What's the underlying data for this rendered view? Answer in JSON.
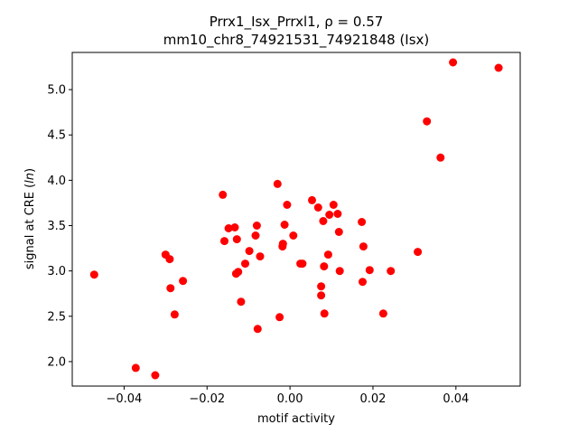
{
  "chart_data": {
    "type": "scatter",
    "title_line1": "Prrx1_Isx_Prrxl1, ρ = 0.57",
    "title_line2": "mm10_chr8_74921531_74921848 (Isx)",
    "xlabel": "motif activity",
    "ylabel_prefix": "signal at CRE (",
    "ylabel_italic": "ln",
    "ylabel_suffix": ")",
    "xlim": [
      -0.0525,
      0.0555
    ],
    "ylim": [
      1.73,
      5.41
    ],
    "xticks": [
      -0.04,
      -0.02,
      0.0,
      0.02,
      0.04
    ],
    "xtick_labels": [
      "−0.04",
      "−0.02",
      "0.00",
      "0.02",
      "0.04"
    ],
    "yticks": [
      2.0,
      2.5,
      3.0,
      3.5,
      4.0,
      4.5,
      5.0
    ],
    "ytick_labels": [
      "2.0",
      "2.5",
      "3.0",
      "3.5",
      "4.0",
      "4.5",
      "5.0"
    ],
    "grid": false,
    "point_color": "#ff0000",
    "points": [
      [
        -0.0472,
        2.96
      ],
      [
        -0.0372,
        1.93
      ],
      [
        -0.0325,
        1.85
      ],
      [
        -0.03,
        3.18
      ],
      [
        -0.029,
        3.13
      ],
      [
        -0.0288,
        2.81
      ],
      [
        -0.0278,
        2.52
      ],
      [
        -0.0258,
        2.89
      ],
      [
        -0.0162,
        3.84
      ],
      [
        -0.0158,
        3.33
      ],
      [
        -0.0148,
        3.47
      ],
      [
        -0.0133,
        3.48
      ],
      [
        -0.013,
        2.97
      ],
      [
        -0.0128,
        3.35
      ],
      [
        -0.0125,
        2.99
      ],
      [
        -0.0118,
        2.66
      ],
      [
        -0.0108,
        3.08
      ],
      [
        -0.0098,
        3.22
      ],
      [
        -0.0083,
        3.39
      ],
      [
        -0.008,
        3.5
      ],
      [
        -0.0078,
        2.36
      ],
      [
        -0.0072,
        3.16
      ],
      [
        -0.003,
        3.96
      ],
      [
        -0.0025,
        2.49
      ],
      [
        -0.0018,
        3.27
      ],
      [
        -0.0017,
        3.3
      ],
      [
        -0.0013,
        3.51
      ],
      [
        -0.0007,
        3.73
      ],
      [
        0.0008,
        3.39
      ],
      [
        0.0025,
        3.08
      ],
      [
        0.003,
        3.08
      ],
      [
        0.0053,
        3.78
      ],
      [
        0.0068,
        3.7
      ],
      [
        0.0075,
        2.83
      ],
      [
        0.0075,
        2.73
      ],
      [
        0.008,
        3.55
      ],
      [
        0.0082,
        3.05
      ],
      [
        0.0083,
        2.53
      ],
      [
        0.0092,
        3.18
      ],
      [
        0.0095,
        3.62
      ],
      [
        0.0105,
        3.73
      ],
      [
        0.0115,
        3.63
      ],
      [
        0.0118,
        3.43
      ],
      [
        0.012,
        3.0
      ],
      [
        0.0173,
        3.54
      ],
      [
        0.0175,
        2.88
      ],
      [
        0.0177,
        3.27
      ],
      [
        0.0192,
        3.01
      ],
      [
        0.0225,
        2.53
      ],
      [
        0.0243,
        3.0
      ],
      [
        0.0308,
        3.21
      ],
      [
        0.033,
        4.65
      ],
      [
        0.0363,
        4.25
      ],
      [
        0.0393,
        5.3
      ],
      [
        0.0503,
        5.24
      ]
    ]
  }
}
